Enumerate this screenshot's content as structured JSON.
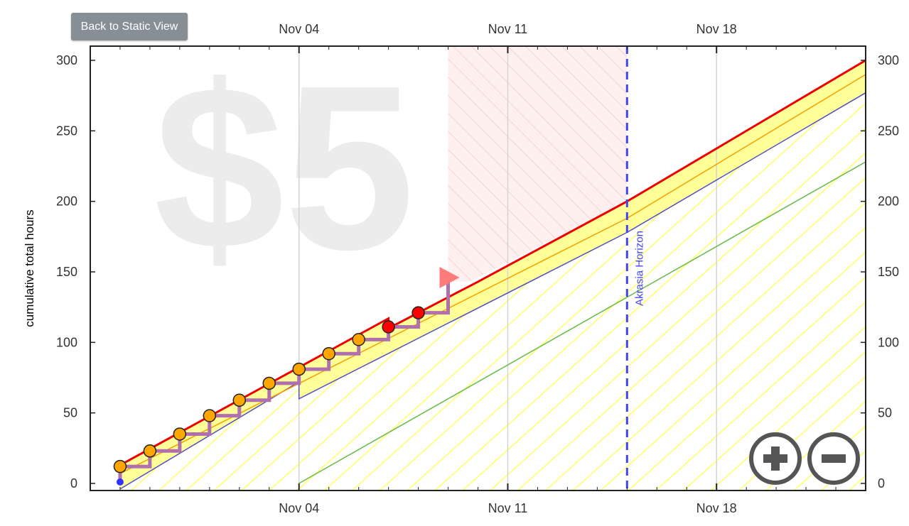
{
  "controls": {
    "back_button_label": "Back to Static View"
  },
  "watermark": {
    "pledge_text": "$5",
    "bottom_icon": "skull-crossbones-icon"
  },
  "zoom": {
    "zoom_in_icon": "zoom-in-icon",
    "zoom_out_icon": "zoom-out-icon"
  },
  "chart_data": {
    "type": "line",
    "ylabel": "cumulative total hours",
    "ylim": [
      0,
      300
    ],
    "y_ticks": [
      0,
      50,
      100,
      150,
      200,
      250,
      300
    ],
    "x_ticks": [
      "Nov 04",
      "Nov 11",
      "Nov 18"
    ],
    "x_tick_dates": [
      "2024-11-04",
      "2024-11-11",
      "2024-11-18"
    ],
    "xlim": [
      "2024-10-28",
      "2024-11-23"
    ],
    "grid": "vertical lines at x ticks",
    "akrasia_horizon": {
      "label": "Akrasia Horizon",
      "date": "2024-11-15",
      "color": "#4444ee"
    },
    "colors": {
      "red_line": "#ee0000",
      "orange_line": "#f5a000",
      "blue_line": "#5050c0",
      "green_line": "#66bb44",
      "yellow_band": "#ffff99",
      "datapoint_fill": "#ffa500",
      "datapoint_stroke": "#9966aa",
      "red_datapoint_fill": "#ff0000",
      "staircase": "#b070b0",
      "horizon_shade": "#ffe4e4"
    },
    "series": [
      {
        "name": "datapoints",
        "points": [
          {
            "x": "2024-10-29",
            "y": 12,
            "status": "orange"
          },
          {
            "x": "2024-10-30",
            "y": 23,
            "status": "orange"
          },
          {
            "x": "2024-10-31",
            "y": 35,
            "status": "orange"
          },
          {
            "x": "2024-11-01",
            "y": 48,
            "status": "orange"
          },
          {
            "x": "2024-11-02",
            "y": 59,
            "status": "orange"
          },
          {
            "x": "2024-11-03",
            "y": 71,
            "status": "orange"
          },
          {
            "x": "2024-11-04",
            "y": 81,
            "status": "orange"
          },
          {
            "x": "2024-11-05",
            "y": 92,
            "status": "orange"
          },
          {
            "x": "2024-11-06",
            "y": 102,
            "status": "orange"
          },
          {
            "x": "2024-11-07",
            "y": 111,
            "status": "red"
          },
          {
            "x": "2024-11-08",
            "y": 121,
            "status": "red"
          }
        ]
      },
      {
        "name": "today",
        "points": [
          {
            "x": "2024-11-09",
            "y": 146
          }
        ]
      },
      {
        "name": "red_road",
        "points": [
          {
            "x": "2024-10-29",
            "y": 13
          },
          {
            "x": "2024-11-07",
            "y": 117
          },
          {
            "x": "2024-11-07",
            "y": 110
          },
          {
            "x": "2024-11-10",
            "y": 143
          },
          {
            "x": "2024-11-15",
            "y": 200
          },
          {
            "x": "2024-11-23",
            "y": 300
          }
        ]
      },
      {
        "name": "orange_line",
        "points": [
          {
            "x": "2024-10-29",
            "y": 7
          },
          {
            "x": "2024-11-15",
            "y": 188
          },
          {
            "x": "2024-11-23",
            "y": 290
          }
        ]
      },
      {
        "name": "blue_line",
        "points": [
          {
            "x": "2024-10-29",
            "y": -4
          },
          {
            "x": "2024-11-04",
            "y": 72
          },
          {
            "x": "2024-11-04",
            "y": 60
          },
          {
            "x": "2024-11-15",
            "y": 178
          },
          {
            "x": "2024-11-23",
            "y": 277
          }
        ]
      },
      {
        "name": "green_line",
        "points": [
          {
            "x": "2024-11-04",
            "y": 0
          },
          {
            "x": "2024-11-23",
            "y": 228
          }
        ]
      }
    ]
  }
}
